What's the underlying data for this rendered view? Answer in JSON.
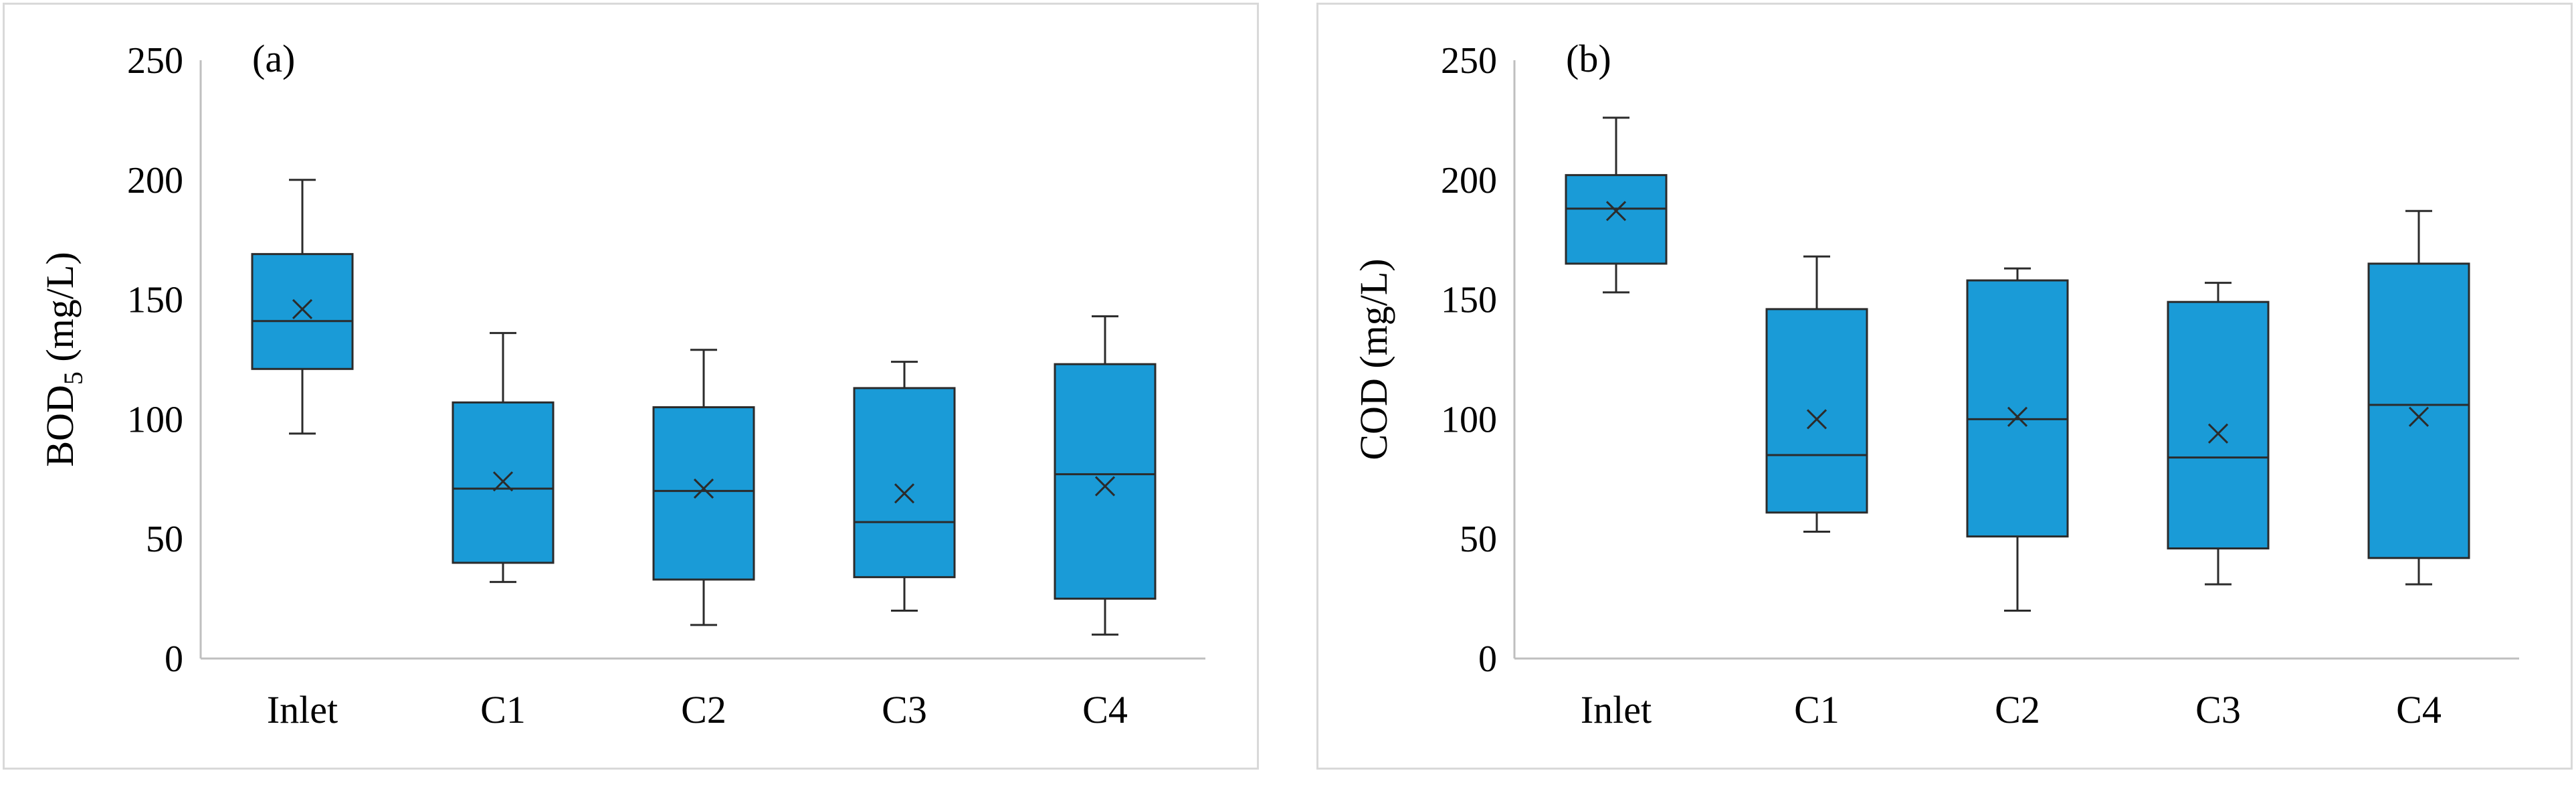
{
  "chart_data": [
    {
      "type": "box",
      "panel_label": "(a)",
      "title": "",
      "xlabel": "",
      "ylabel": "BOD5 (mg/L)",
      "ylabel_main": "BOD",
      "ylabel_sub": "5",
      "ylabel_rest": " (mg/L)",
      "ylim": [
        0,
        250
      ],
      "yticks": [
        0,
        50,
        100,
        150,
        200,
        250
      ],
      "categories": [
        "Inlet",
        "C1",
        "C2",
        "C3",
        "C4"
      ],
      "boxes": [
        {
          "category": "Inlet",
          "min": 94,
          "q1": 121,
          "median": 141,
          "q3": 169,
          "max": 200,
          "mean": 146
        },
        {
          "category": "C1",
          "min": 32,
          "q1": 40,
          "median": 71,
          "q3": 107,
          "max": 136,
          "mean": 74
        },
        {
          "category": "C2",
          "min": 14,
          "q1": 33,
          "median": 70,
          "q3": 105,
          "max": 129,
          "mean": 71
        },
        {
          "category": "C3",
          "min": 20,
          "q1": 34,
          "median": 57,
          "q3": 113,
          "max": 124,
          "mean": 69
        },
        {
          "category": "C4",
          "min": 10,
          "q1": 25,
          "median": 77,
          "q3": 123,
          "max": 143,
          "mean": 72
        }
      ],
      "colors": {
        "box_fill": "#1a9bd7",
        "box_stroke": "#2b2b2b",
        "axis": "#bfbfbf"
      }
    },
    {
      "type": "box",
      "panel_label": "(b)",
      "title": "",
      "xlabel": "",
      "ylabel": "COD (mg/L)",
      "ylabel_main": "COD (mg/L)",
      "ylabel_sub": "",
      "ylabel_rest": "",
      "ylim": [
        0,
        250
      ],
      "yticks": [
        0,
        50,
        100,
        150,
        200,
        250
      ],
      "categories": [
        "Inlet",
        "C1",
        "C2",
        "C3",
        "C4"
      ],
      "boxes": [
        {
          "category": "Inlet",
          "min": 153,
          "q1": 165,
          "median": 188,
          "q3": 202,
          "max": 226,
          "mean": 187
        },
        {
          "category": "C1",
          "min": 53,
          "q1": 61,
          "median": 85,
          "q3": 146,
          "max": 168,
          "mean": 100
        },
        {
          "category": "C2",
          "min": 20,
          "q1": 51,
          "median": 100,
          "q3": 158,
          "max": 163,
          "mean": 101
        },
        {
          "category": "C3",
          "min": 31,
          "q1": 46,
          "median": 84,
          "q3": 149,
          "max": 157,
          "mean": 94
        },
        {
          "category": "C4",
          "min": 31,
          "q1": 42,
          "median": 106,
          "q3": 165,
          "max": 187,
          "mean": 101
        }
      ],
      "colors": {
        "box_fill": "#1a9bd7",
        "box_stroke": "#2b2b2b",
        "axis": "#bfbfbf"
      }
    }
  ]
}
